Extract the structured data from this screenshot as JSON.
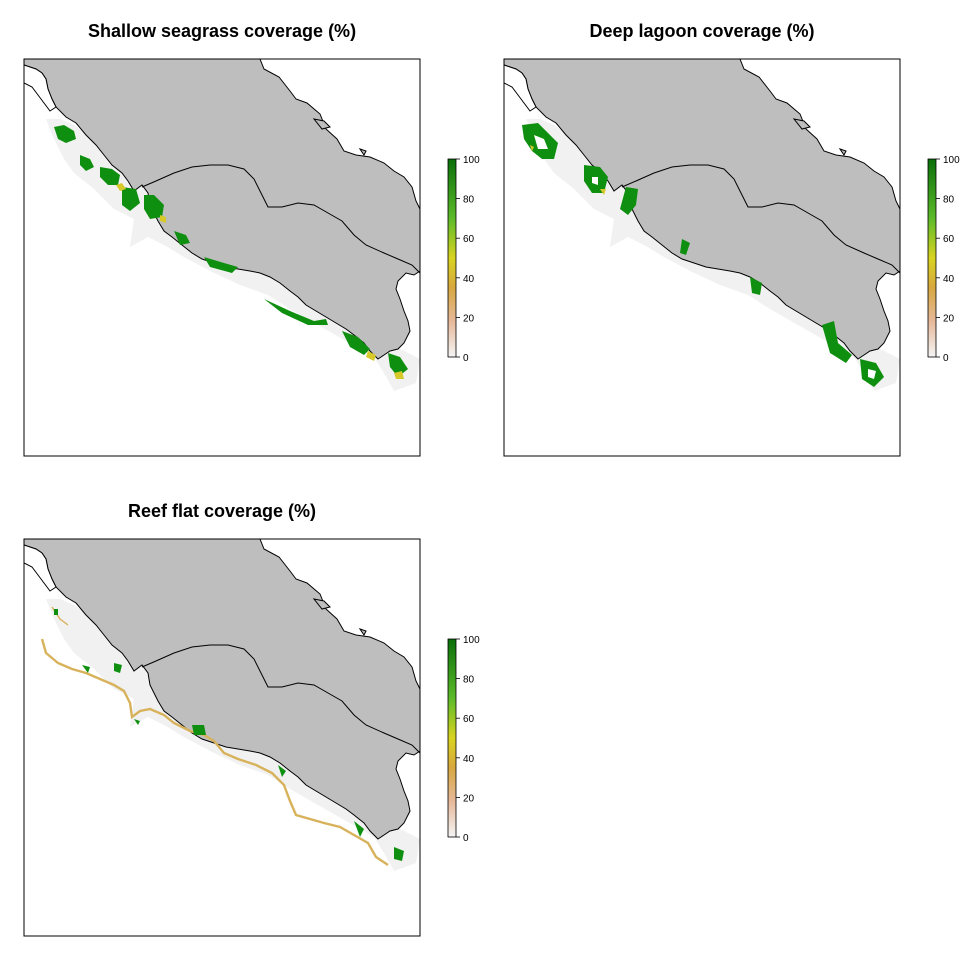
{
  "panels": [
    {
      "id": "shallow-seagrass",
      "title": "Shallow seagrass coverage (%)"
    },
    {
      "id": "deep-lagoon",
      "title": "Deep lagoon coverage (%)"
    },
    {
      "id": "reef-flat",
      "title": "Reef flat coverage (%)"
    }
  ],
  "legend": {
    "ticks": [
      "100",
      "80",
      "60",
      "40",
      "20",
      "0"
    ],
    "color_scale": [
      "#f2f2f2",
      "#e8c8a8",
      "#d4a23a",
      "#d8d020",
      "#4caf1a",
      "#0a6e0a"
    ]
  },
  "colors": {
    "land": "#bebebe",
    "shelf": "#f1f1f1",
    "high_coverage": "#0f8f0f",
    "low_coverage": "#d7b25a"
  }
}
